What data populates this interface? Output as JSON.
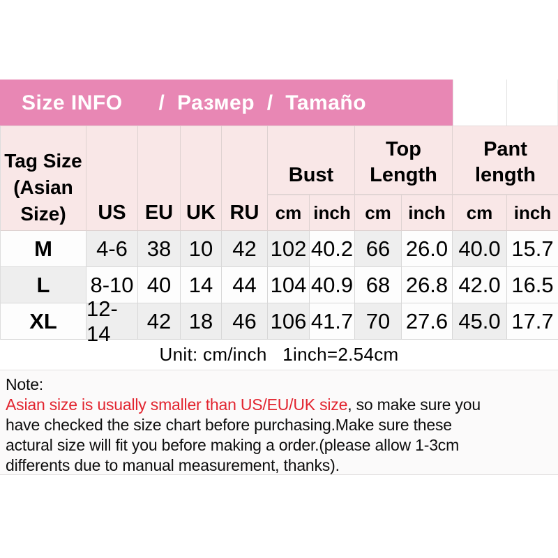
{
  "colors": {
    "banner_pink": "#e887b4",
    "header_pink": "#f9e7e7",
    "note_red": "#e2242f"
  },
  "banner": {
    "brand": "Size INFO",
    "translations": "/  Размер  /  Tamaño"
  },
  "table": {
    "corner_header_lines": [
      "Tag Size",
      "(Asian",
      "Size)"
    ],
    "region_headers": [
      "US",
      "EU",
      "UK",
      "RU"
    ],
    "group_headers": [
      "Bust",
      "Top Length",
      "Pant length"
    ],
    "unit_headers": [
      "cm",
      "inch",
      "cm",
      "inch",
      "cm",
      "inch"
    ],
    "rows": [
      {
        "tag": "M",
        "cells": [
          "4-6",
          "38",
          "10",
          "42",
          "102",
          "40.2",
          "66",
          "26.0",
          "40.0",
          "15.7"
        ]
      },
      {
        "tag": "L",
        "cells": [
          "8-10",
          "40",
          "14",
          "44",
          "104",
          "40.9",
          "68",
          "26.8",
          "42.0",
          "16.5"
        ]
      },
      {
        "tag": "XL",
        "cells": [
          "12-14",
          "42",
          "18",
          "46",
          "106",
          "41.7",
          "70",
          "27.6",
          "45.0",
          "17.7"
        ]
      }
    ]
  },
  "unit_text": "Unit: cm/inch   1inch=2.54cm",
  "note": {
    "lines": [
      {
        "segments": [
          {
            "text": "Note:"
          }
        ]
      },
      {
        "segments": [
          {
            "text": "Asian size is usually smaller than US/EU/UK size",
            "highlight": true
          },
          {
            "text": ", so make sure you"
          }
        ]
      },
      {
        "segments": [
          {
            "text": "have checked the size chart before purchasing.Make sure these"
          }
        ]
      },
      {
        "segments": [
          {
            "text": "actural size will fit you before making a order.(please allow 1-3cm"
          }
        ]
      },
      {
        "segments": [
          {
            "text": "differents due to manual measurement, thanks)."
          }
        ]
      }
    ]
  }
}
